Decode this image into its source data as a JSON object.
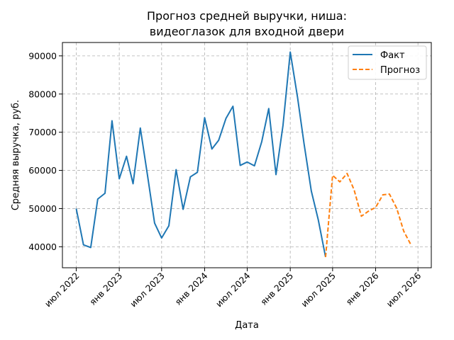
{
  "chart_data": {
    "type": "line",
    "title": [
      "Прогноз средней выручки, ниша:",
      "видеоглазок для входной двери"
    ],
    "xlabel": "Дата",
    "ylabel": "Средняя выручка, руб.",
    "x_ticks": [
      {
        "date": "2022-07-01",
        "label": "июл 2022"
      },
      {
        "date": "2023-01-01",
        "label": "янв 2023"
      },
      {
        "date": "2023-07-01",
        "label": "июл 2023"
      },
      {
        "date": "2024-01-01",
        "label": "янв 2024"
      },
      {
        "date": "2024-07-01",
        "label": "июл 2024"
      },
      {
        "date": "2025-01-01",
        "label": "янв 2025"
      },
      {
        "date": "2025-07-01",
        "label": "июл 2025"
      },
      {
        "date": "2026-01-01",
        "label": "янв 2026"
      },
      {
        "date": "2026-07-01",
        "label": "июл 2026"
      }
    ],
    "y_ticks": [
      40000,
      50000,
      60000,
      70000,
      80000,
      90000
    ],
    "xlim": [
      "2022-05-03",
      "2026-08-27"
    ],
    "ylim": [
      34500,
      93500
    ],
    "grid": true,
    "legend_position": "top-right",
    "series": [
      {
        "name": "Факт",
        "color": "#1f77b4",
        "style": "solid",
        "x": [
          "2022-07-01",
          "2022-08-01",
          "2022-09-01",
          "2022-10-01",
          "2022-11-01",
          "2022-12-01",
          "2023-01-01",
          "2023-02-01",
          "2023-03-01",
          "2023-04-01",
          "2023-05-01",
          "2023-06-01",
          "2023-07-01",
          "2023-08-01",
          "2023-09-01",
          "2023-10-01",
          "2023-11-01",
          "2023-12-01",
          "2024-01-01",
          "2024-02-01",
          "2024-03-01",
          "2024-04-01",
          "2024-05-01",
          "2024-06-01",
          "2024-07-01",
          "2024-08-01",
          "2024-09-01",
          "2024-10-01",
          "2024-11-01",
          "2024-12-01",
          "2025-01-01",
          "2025-02-01",
          "2025-03-01",
          "2025-04-01",
          "2025-05-01",
          "2025-06-01"
        ],
        "y": [
          50000,
          40500,
          39800,
          52500,
          54000,
          73000,
          57800,
          63700,
          56500,
          71100,
          59000,
          46200,
          42300,
          45500,
          60200,
          49800,
          58300,
          59500,
          73800,
          65600,
          67900,
          73600,
          76800,
          61300,
          62200,
          61200,
          67500,
          76200,
          58900,
          71800,
          91000,
          79200,
          67000,
          54600,
          47000,
          37300
        ]
      },
      {
        "name": "Прогноз",
        "color": "#ff7f0e",
        "style": "dashed",
        "x": [
          "2025-06-01",
          "2025-07-01",
          "2025-08-01",
          "2025-09-01",
          "2025-10-01",
          "2025-11-01",
          "2025-12-01",
          "2026-01-01",
          "2026-02-01",
          "2026-03-01",
          "2026-04-01",
          "2026-05-01",
          "2026-06-01"
        ],
        "y": [
          37300,
          58700,
          57000,
          59200,
          54900,
          48000,
          49300,
          50300,
          53600,
          53800,
          50100,
          44100,
          40500
        ]
      }
    ]
  }
}
